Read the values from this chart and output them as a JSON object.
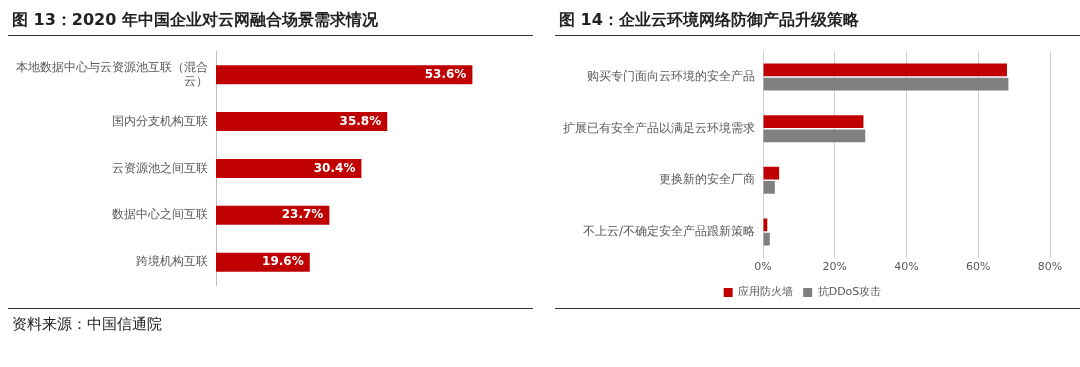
{
  "chart_data": [
    {
      "type": "bar",
      "orientation": "horizontal",
      "title": "图 13：2020 年中国企业对云网融合场景需求情况",
      "categories": [
        "本地数据中心与云资源池互联（混合云）",
        "国内分支机构互联",
        "云资源池之间互联",
        "数据中心之间互联",
        "跨境机构互联"
      ],
      "values": [
        53.6,
        35.8,
        30.4,
        23.7,
        19.6
      ],
      "value_labels": [
        "53.6%",
        "35.8%",
        "30.4%",
        "23.7%",
        "19.6%"
      ],
      "color": "#c00000",
      "tick_labels": "y",
      "grid": false,
      "legend": false,
      "annotations": [
        "资料来源：中国信通院"
      ]
    },
    {
      "type": "bar",
      "orientation": "horizontal",
      "title": "图 14：企业云环境网络防御产品升级策略",
      "categories": [
        "购买专门面向云环境的安全产品",
        "扩展已有安全产品以满足云环境需求",
        "更换新的安全厂商",
        "不上云/不确定安全产品跟新策略"
      ],
      "series": [
        {
          "name": "应用防火墙",
          "color": "#c00000",
          "values": [
            68,
            28,
            4.5,
            1.2
          ]
        },
        {
          "name": "抗DDoS攻击",
          "color": "#808080",
          "values": [
            68.4,
            28.5,
            3.3,
            1.9
          ]
        }
      ],
      "xlim": [
        0,
        80
      ],
      "xticks": [
        {
          "value": 0,
          "label": "0%"
        },
        {
          "value": 20,
          "label": "20%"
        },
        {
          "value": 40,
          "label": "40%"
        },
        {
          "value": 60,
          "label": "60%"
        },
        {
          "value": 80,
          "label": "80%"
        }
      ],
      "grid": "x",
      "legend": "bottom"
    }
  ]
}
